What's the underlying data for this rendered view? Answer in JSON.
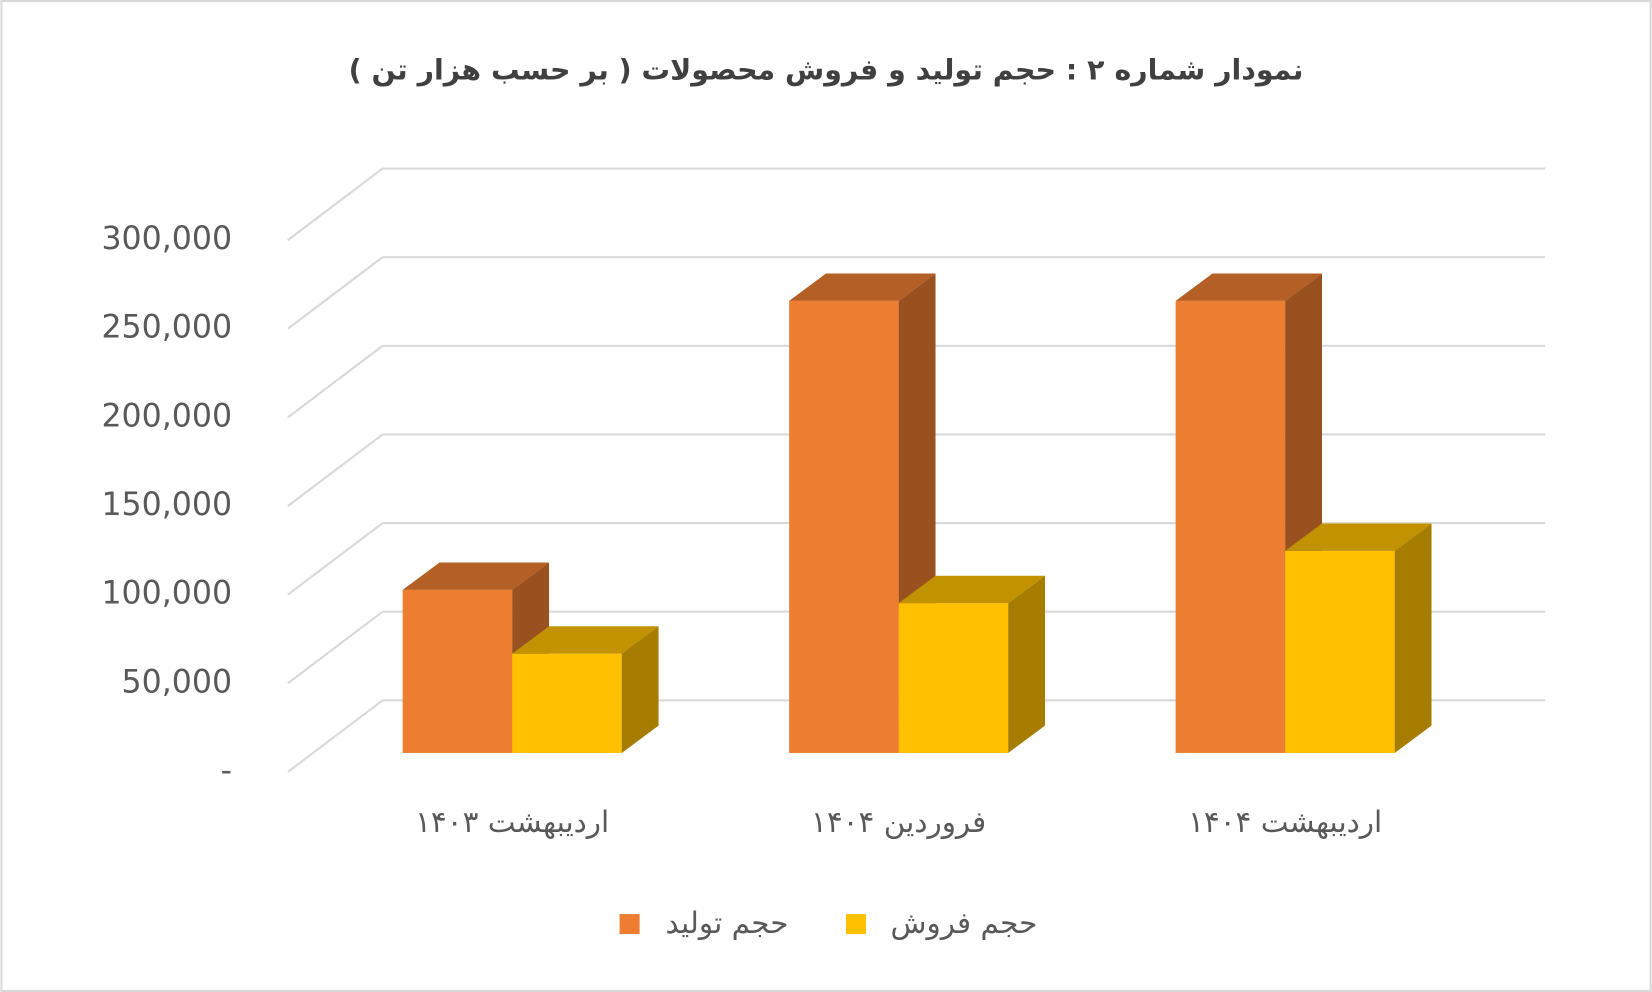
{
  "chart_data": {
    "type": "bar3d",
    "title": "نمودار شماره ۲ : حجم تولید و فروش محصولات ( بر حسب هزار تن )",
    "categories": [
      "اردیبهشت ۱۴۰۳",
      "فروردین ۱۴۰۴",
      "اردیبهشت ۱۴۰۴"
    ],
    "series": [
      {
        "name": "حجم تولید",
        "color": "#ED7D31",
        "values": [
          92000,
          255000,
          255000
        ]
      },
      {
        "name": "حجم فروش",
        "color": "#FFC000",
        "values": [
          56000,
          84500,
          114000
        ]
      }
    ],
    "ylim": [
      0,
      300000
    ],
    "yticks": [
      {
        "value": 0,
        "label": "-"
      },
      {
        "value": 50000,
        "label": "50,000"
      },
      {
        "value": 100000,
        "label": "100,000"
      },
      {
        "value": 150000,
        "label": "150,000"
      },
      {
        "value": 200000,
        "label": "200,000"
      },
      {
        "value": 250000,
        "label": "250,000"
      },
      {
        "value": 300000,
        "label": "300,000"
      }
    ],
    "grid": true,
    "legend": "bottom"
  }
}
